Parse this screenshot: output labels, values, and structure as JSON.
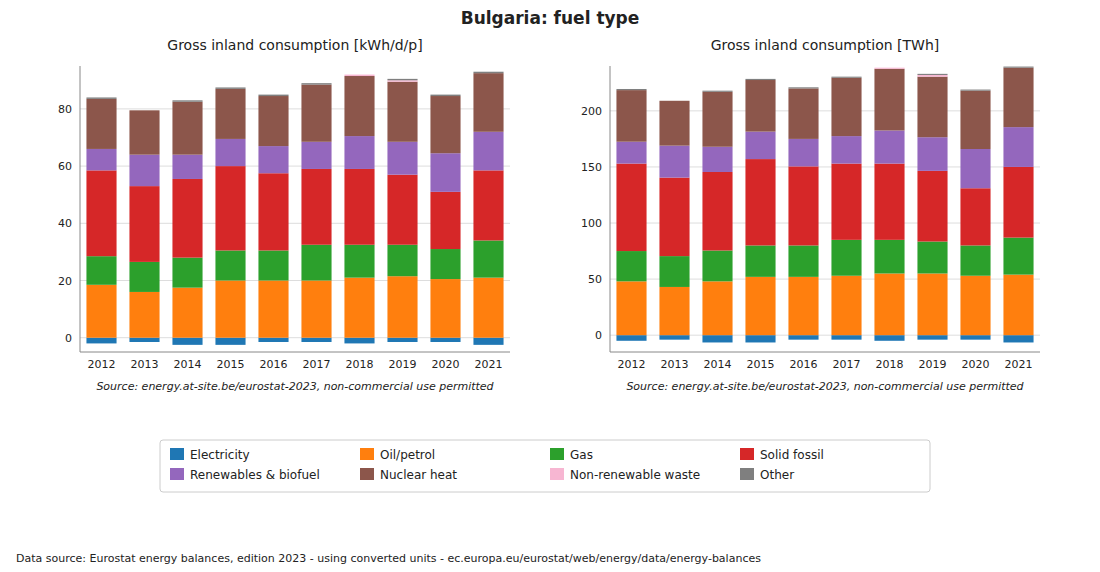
{
  "title": "Bulgaria: fuel type",
  "annotations": [
    "Data source: Eurostat energy balances, edition 2023 - using converted units - ec.europa.eu/eurostat/web/energy/data/energy-balances"
  ],
  "chart_data": [
    {
      "type": "bar",
      "stacked": true,
      "grid": true,
      "title": "Gross inland consumption [kWh/d/p]",
      "annotations": [
        "Source: energy.at-site.be/eurostat-2023, non-commercial use permitted"
      ],
      "categories": [
        "2012",
        "2013",
        "2014",
        "2015",
        "2016",
        "2017",
        "2018",
        "2019",
        "2020",
        "2021"
      ],
      "ylim": [
        -5,
        95
      ],
      "yticks": [
        0,
        20,
        40,
        60,
        80
      ],
      "series": [
        {
          "name": "Electricity",
          "color": "#1f77b4",
          "values": [
            -2.0,
            -1.5,
            -2.5,
            -2.5,
            -1.5,
            -1.5,
            -2.0,
            -1.5,
            -1.5,
            -2.5
          ]
        },
        {
          "name": "Oil/petrol",
          "color": "#ff7f0e",
          "values": [
            18.5,
            16.0,
            17.5,
            20.0,
            20.0,
            20.0,
            21.0,
            21.5,
            20.5,
            21.0
          ]
        },
        {
          "name": "Gas",
          "color": "#2ca02c",
          "values": [
            10.0,
            10.5,
            10.5,
            10.5,
            10.5,
            12.5,
            11.5,
            11.0,
            10.5,
            13.0
          ]
        },
        {
          "name": "Solid fossil",
          "color": "#d62728",
          "values": [
            30.0,
            26.5,
            27.5,
            29.5,
            27.0,
            26.5,
            26.5,
            24.5,
            20.0,
            24.5
          ]
        },
        {
          "name": "Renewables & biofuel",
          "color": "#9467bd",
          "values": [
            7.5,
            11.0,
            8.5,
            9.5,
            9.5,
            9.5,
            11.5,
            11.5,
            13.5,
            13.5
          ]
        },
        {
          "name": "Nuclear heat",
          "color": "#8c564b",
          "values": [
            17.5,
            15.5,
            18.5,
            17.5,
            17.5,
            20.0,
            21.0,
            21.0,
            20.0,
            20.5
          ]
        },
        {
          "name": "Non-renewable waste",
          "color": "#f7b6d2",
          "values": [
            0.0,
            0.0,
            0.0,
            0.0,
            0.0,
            0.0,
            0.5,
            0.5,
            0.0,
            0.0
          ]
        },
        {
          "name": "Other",
          "color": "#7f7f7f",
          "values": [
            0.5,
            0.0,
            0.5,
            0.5,
            0.5,
            0.5,
            0.0,
            0.5,
            0.5,
            0.5
          ]
        }
      ]
    },
    {
      "type": "bar",
      "stacked": true,
      "grid": true,
      "title": "Gross inland consumption [TWh]",
      "annotations": [
        "Source: energy.at-site.be/eurostat-2023, non-commercial use permitted"
      ],
      "categories": [
        "2012",
        "2013",
        "2014",
        "2015",
        "2016",
        "2017",
        "2018",
        "2019",
        "2020",
        "2021"
      ],
      "ylim": [
        -15,
        240
      ],
      "yticks": [
        0,
        50,
        100,
        150,
        200
      ],
      "series": [
        {
          "name": "Electricity",
          "color": "#1f77b4",
          "values": [
            -5.0,
            -4.0,
            -6.5,
            -6.5,
            -4.0,
            -4.0,
            -5.0,
            -4.0,
            -4.0,
            -6.5
          ]
        },
        {
          "name": "Oil/petrol",
          "color": "#ff7f0e",
          "values": [
            48.0,
            43.0,
            48.0,
            52.0,
            52.0,
            53.0,
            55.0,
            55.0,
            53.0,
            54.0
          ]
        },
        {
          "name": "Gas",
          "color": "#2ca02c",
          "values": [
            27.0,
            27.5,
            27.5,
            28.0,
            28.0,
            32.0,
            30.0,
            28.5,
            27.0,
            33.0
          ]
        },
        {
          "name": "Solid fossil",
          "color": "#d62728",
          "values": [
            78.0,
            70.0,
            70.0,
            77.0,
            70.5,
            68.0,
            68.0,
            63.0,
            51.0,
            63.0
          ]
        },
        {
          "name": "Renewables & biofuel",
          "color": "#9467bd",
          "values": [
            19.5,
            28.5,
            22.5,
            24.5,
            24.5,
            24.5,
            29.5,
            30.0,
            35.0,
            35.5
          ]
        },
        {
          "name": "Nuclear heat",
          "color": "#8c564b",
          "values": [
            46.0,
            40.0,
            49.0,
            46.0,
            45.0,
            52.0,
            55.0,
            54.0,
            52.0,
            53.0
          ]
        },
        {
          "name": "Non-renewable waste",
          "color": "#f7b6d2",
          "values": [
            0.0,
            0.0,
            0.0,
            0.0,
            0.0,
            0.0,
            1.0,
            1.5,
            0.0,
            0.0
          ]
        },
        {
          "name": "Other",
          "color": "#7f7f7f",
          "values": [
            1.0,
            0.0,
            1.0,
            1.0,
            1.0,
            1.0,
            0.0,
            1.0,
            1.0,
            1.0
          ]
        }
      ]
    }
  ]
}
